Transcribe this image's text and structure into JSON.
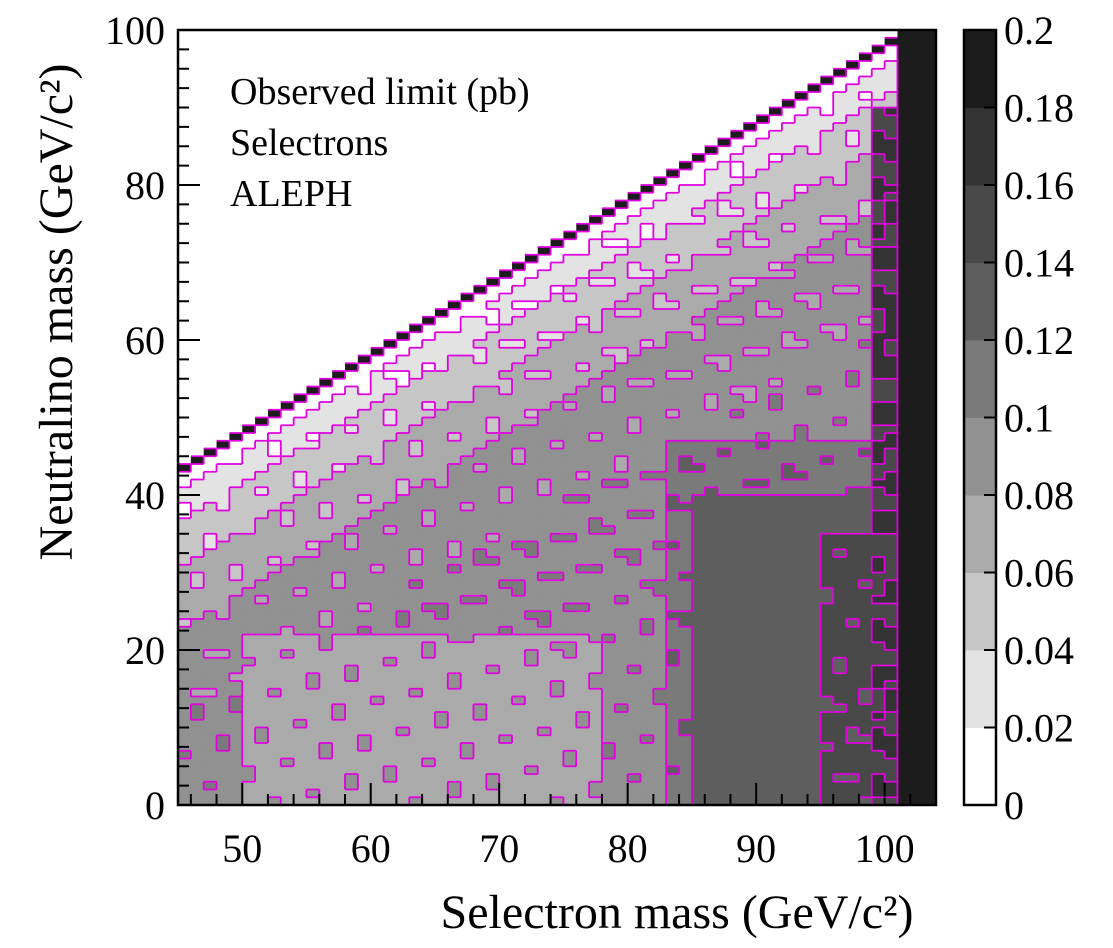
{
  "chart_data": {
    "type": "heatmap",
    "xlabel": "Selectron mass (GeV/c²)",
    "ylabel": "Neutralino mass (GeV/c²)",
    "xlim": [
      45,
      104
    ],
    "ylim": [
      0,
      100
    ],
    "x_ticks": [
      "50",
      "60",
      "70",
      "80",
      "90",
      "100"
    ],
    "y_ticks": [
      "0",
      "20",
      "40",
      "60",
      "80",
      "100"
    ],
    "highlighted_tick_labels": [
      "50",
      "100",
      "0"
    ],
    "colorbar": {
      "label_values": [
        "0",
        "0.02",
        "0.04",
        "0.06",
        "0.08",
        "0.1",
        "0.12",
        "0.14",
        "0.16",
        "0.18",
        "0.2"
      ],
      "range": [
        0,
        0.2
      ],
      "colors": [
        "#ffffff",
        "#e3e3e3",
        "#c6c6c6",
        "#aaaaaa",
        "#919191",
        "#7a7a7a",
        "#5e5e5e",
        "#494949",
        "#333333",
        "#1c1c1c"
      ]
    },
    "annotations": [
      "Observed limit (pb)",
      "Selectrons",
      "ALEPH"
    ],
    "z_description": "Observed cross-section limit in pb over (selectron mass, neutralino mass); kinematically allowed region neutralino < selectron",
    "value_regions": [
      {
        "region": "diagonal edge (neutralino ≈ selectron mass)",
        "limit_pb": 0.19
      },
      {
        "region": "just below diagonal",
        "limit_pb": 0.01
      },
      {
        "region": "upper band (Δm ~ 5-15 GeV)",
        "limit_pb": 0.03
      },
      {
        "region": "middle band",
        "limit_pb": 0.05
      },
      {
        "region": "lower band",
        "limit_pb": 0.07
      },
      {
        "region": "low neutralino mass, low selectron mass",
        "limit_pb": 0.09
      },
      {
        "region": "selectron 85-100 GeV",
        "limit_pb": 0.13
      },
      {
        "region": "selectron > 101 GeV",
        "limit_pb": 0.19
      }
    ]
  },
  "colors": {
    "contour": "#e000e0",
    "highlight_tick": "#d000d0",
    "frame": "#000000"
  }
}
